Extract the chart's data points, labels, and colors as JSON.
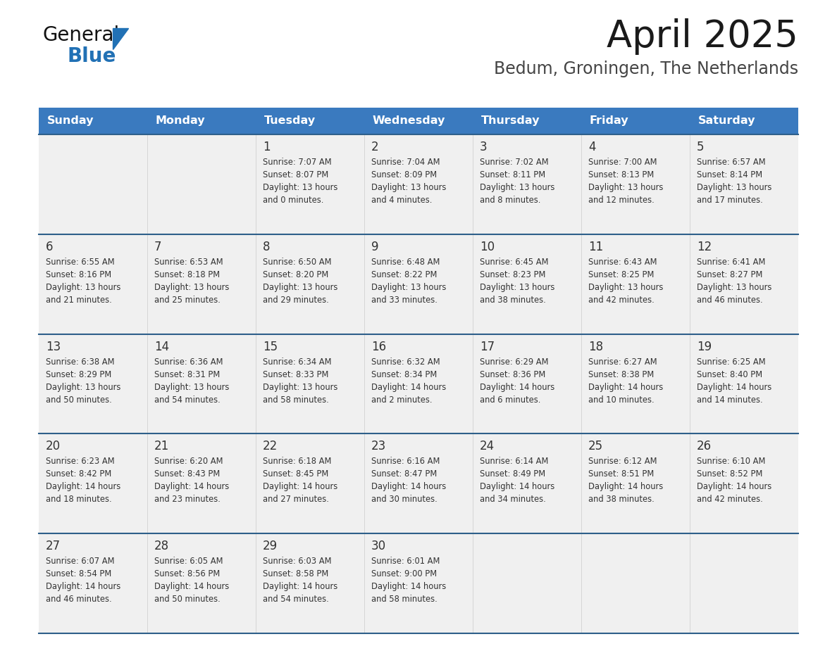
{
  "title": "April 2025",
  "subtitle": "Bedum, Groningen, The Netherlands",
  "days_of_week": [
    "Sunday",
    "Monday",
    "Tuesday",
    "Wednesday",
    "Thursday",
    "Friday",
    "Saturday"
  ],
  "header_bg": "#3a7abf",
  "header_text": "#ffffff",
  "row_bg": "#f0f0f0",
  "row_bg_last_empty": "#f0f0f0",
  "divider_color": "#2e5f8a",
  "text_color": "#333333",
  "title_color": "#1a1a1a",
  "subtitle_color": "#444444",
  "logo_general_color": "#111111",
  "logo_blue_color": "#2171b5",
  "weeks": [
    [
      {
        "day": null,
        "info": null
      },
      {
        "day": null,
        "info": null
      },
      {
        "day": 1,
        "info": "Sunrise: 7:07 AM\nSunset: 8:07 PM\nDaylight: 13 hours\nand 0 minutes."
      },
      {
        "day": 2,
        "info": "Sunrise: 7:04 AM\nSunset: 8:09 PM\nDaylight: 13 hours\nand 4 minutes."
      },
      {
        "day": 3,
        "info": "Sunrise: 7:02 AM\nSunset: 8:11 PM\nDaylight: 13 hours\nand 8 minutes."
      },
      {
        "day": 4,
        "info": "Sunrise: 7:00 AM\nSunset: 8:13 PM\nDaylight: 13 hours\nand 12 minutes."
      },
      {
        "day": 5,
        "info": "Sunrise: 6:57 AM\nSunset: 8:14 PM\nDaylight: 13 hours\nand 17 minutes."
      }
    ],
    [
      {
        "day": 6,
        "info": "Sunrise: 6:55 AM\nSunset: 8:16 PM\nDaylight: 13 hours\nand 21 minutes."
      },
      {
        "day": 7,
        "info": "Sunrise: 6:53 AM\nSunset: 8:18 PM\nDaylight: 13 hours\nand 25 minutes."
      },
      {
        "day": 8,
        "info": "Sunrise: 6:50 AM\nSunset: 8:20 PM\nDaylight: 13 hours\nand 29 minutes."
      },
      {
        "day": 9,
        "info": "Sunrise: 6:48 AM\nSunset: 8:22 PM\nDaylight: 13 hours\nand 33 minutes."
      },
      {
        "day": 10,
        "info": "Sunrise: 6:45 AM\nSunset: 8:23 PM\nDaylight: 13 hours\nand 38 minutes."
      },
      {
        "day": 11,
        "info": "Sunrise: 6:43 AM\nSunset: 8:25 PM\nDaylight: 13 hours\nand 42 minutes."
      },
      {
        "day": 12,
        "info": "Sunrise: 6:41 AM\nSunset: 8:27 PM\nDaylight: 13 hours\nand 46 minutes."
      }
    ],
    [
      {
        "day": 13,
        "info": "Sunrise: 6:38 AM\nSunset: 8:29 PM\nDaylight: 13 hours\nand 50 minutes."
      },
      {
        "day": 14,
        "info": "Sunrise: 6:36 AM\nSunset: 8:31 PM\nDaylight: 13 hours\nand 54 minutes."
      },
      {
        "day": 15,
        "info": "Sunrise: 6:34 AM\nSunset: 8:33 PM\nDaylight: 13 hours\nand 58 minutes."
      },
      {
        "day": 16,
        "info": "Sunrise: 6:32 AM\nSunset: 8:34 PM\nDaylight: 14 hours\nand 2 minutes."
      },
      {
        "day": 17,
        "info": "Sunrise: 6:29 AM\nSunset: 8:36 PM\nDaylight: 14 hours\nand 6 minutes."
      },
      {
        "day": 18,
        "info": "Sunrise: 6:27 AM\nSunset: 8:38 PM\nDaylight: 14 hours\nand 10 minutes."
      },
      {
        "day": 19,
        "info": "Sunrise: 6:25 AM\nSunset: 8:40 PM\nDaylight: 14 hours\nand 14 minutes."
      }
    ],
    [
      {
        "day": 20,
        "info": "Sunrise: 6:23 AM\nSunset: 8:42 PM\nDaylight: 14 hours\nand 18 minutes."
      },
      {
        "day": 21,
        "info": "Sunrise: 6:20 AM\nSunset: 8:43 PM\nDaylight: 14 hours\nand 23 minutes."
      },
      {
        "day": 22,
        "info": "Sunrise: 6:18 AM\nSunset: 8:45 PM\nDaylight: 14 hours\nand 27 minutes."
      },
      {
        "day": 23,
        "info": "Sunrise: 6:16 AM\nSunset: 8:47 PM\nDaylight: 14 hours\nand 30 minutes."
      },
      {
        "day": 24,
        "info": "Sunrise: 6:14 AM\nSunset: 8:49 PM\nDaylight: 14 hours\nand 34 minutes."
      },
      {
        "day": 25,
        "info": "Sunrise: 6:12 AM\nSunset: 8:51 PM\nDaylight: 14 hours\nand 38 minutes."
      },
      {
        "day": 26,
        "info": "Sunrise: 6:10 AM\nSunset: 8:52 PM\nDaylight: 14 hours\nand 42 minutes."
      }
    ],
    [
      {
        "day": 27,
        "info": "Sunrise: 6:07 AM\nSunset: 8:54 PM\nDaylight: 14 hours\nand 46 minutes."
      },
      {
        "day": 28,
        "info": "Sunrise: 6:05 AM\nSunset: 8:56 PM\nDaylight: 14 hours\nand 50 minutes."
      },
      {
        "day": 29,
        "info": "Sunrise: 6:03 AM\nSunset: 8:58 PM\nDaylight: 14 hours\nand 54 minutes."
      },
      {
        "day": 30,
        "info": "Sunrise: 6:01 AM\nSunset: 9:00 PM\nDaylight: 14 hours\nand 58 minutes."
      },
      {
        "day": null,
        "info": null
      },
      {
        "day": null,
        "info": null
      },
      {
        "day": null,
        "info": null
      }
    ]
  ]
}
